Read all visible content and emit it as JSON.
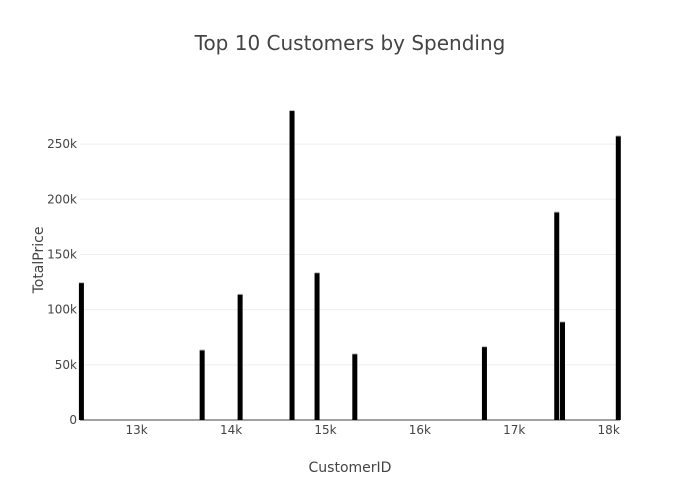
{
  "chart_data": {
    "type": "bar",
    "title": "Top 10 Customers by Spending",
    "xlabel": "CustomerID",
    "ylabel": "TotalPrice",
    "x": [
      12415,
      13694,
      14096,
      14646,
      14911,
      15311,
      16684,
      17450,
      17511,
      18102
    ],
    "values": [
      124000,
      63000,
      113500,
      280000,
      133000,
      59500,
      66000,
      188000,
      88500,
      257000
    ],
    "xlim": [
      12400,
      18120
    ],
    "ylim": [
      0,
      290000
    ],
    "x_ticks": [
      {
        "value": 13000,
        "label": "13k"
      },
      {
        "value": 14000,
        "label": "14k"
      },
      {
        "value": 15000,
        "label": "15k"
      },
      {
        "value": 16000,
        "label": "16k"
      },
      {
        "value": 17000,
        "label": "17k"
      },
      {
        "value": 18000,
        "label": "18k"
      }
    ],
    "y_ticks": [
      {
        "value": 0,
        "label": "0"
      },
      {
        "value": 50000,
        "label": "50k"
      },
      {
        "value": 100000,
        "label": "100k"
      },
      {
        "value": 150000,
        "label": "150k"
      },
      {
        "value": 200000,
        "label": "200k"
      },
      {
        "value": 250000,
        "label": "250k"
      }
    ],
    "grid": true,
    "legend": "none",
    "bar_color": "#000000",
    "grid_color": "#eeeeee",
    "text_color": "#444444"
  }
}
